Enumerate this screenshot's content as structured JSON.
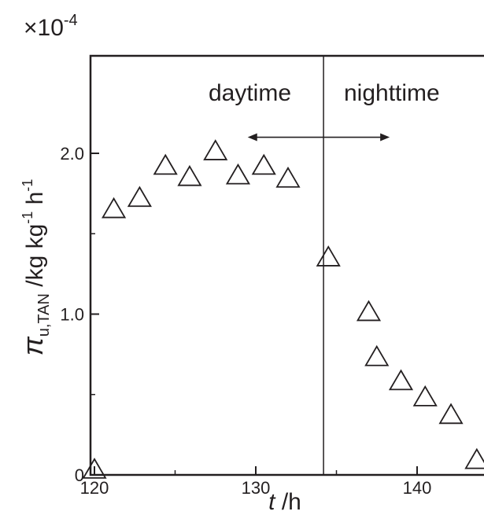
{
  "chart_data": {
    "type": "scatter",
    "multiplier": "×10",
    "multiplier_exp": "-4",
    "xlabel": {
      "var": "t",
      "unit": " /h"
    },
    "ylabel": {
      "symbol": "π",
      "sub": "u,TAN",
      "unit_a": " /kg kg",
      "sup1": "-1",
      "unit_b": " h",
      "sup2": "-1"
    },
    "xlim": [
      119.5,
      144.5
    ],
    "ylim": [
      0,
      2.5
    ],
    "x_ticks": [
      120,
      130,
      140
    ],
    "x_tick_labels": [
      "120",
      "130",
      "140"
    ],
    "y_ticks": [
      0,
      1.0,
      2.0
    ],
    "y_tick_labels": [
      "0",
      "1.0",
      "2.0"
    ],
    "grid": false,
    "vertical_line_x": 134.2,
    "arrow": {
      "from": 129.5,
      "to": 138.3,
      "y": 2.1
    },
    "annotations": {
      "left": "daytime",
      "right": "nighttime"
    },
    "marker": "open-triangle",
    "points": [
      {
        "x": 120.0,
        "y": 0.03
      },
      {
        "x": 121.2,
        "y": 1.65
      },
      {
        "x": 122.8,
        "y": 1.72
      },
      {
        "x": 124.4,
        "y": 1.92
      },
      {
        "x": 125.9,
        "y": 1.85
      },
      {
        "x": 127.5,
        "y": 2.01
      },
      {
        "x": 128.9,
        "y": 1.86
      },
      {
        "x": 130.5,
        "y": 1.92
      },
      {
        "x": 132.0,
        "y": 1.84
      },
      {
        "x": 134.5,
        "y": 1.35
      },
      {
        "x": 137.0,
        "y": 1.01
      },
      {
        "x": 137.5,
        "y": 0.73
      },
      {
        "x": 139.0,
        "y": 0.58
      },
      {
        "x": 140.5,
        "y": 0.48
      },
      {
        "x": 142.1,
        "y": 0.37
      },
      {
        "x": 143.7,
        "y": 0.09
      }
    ]
  }
}
